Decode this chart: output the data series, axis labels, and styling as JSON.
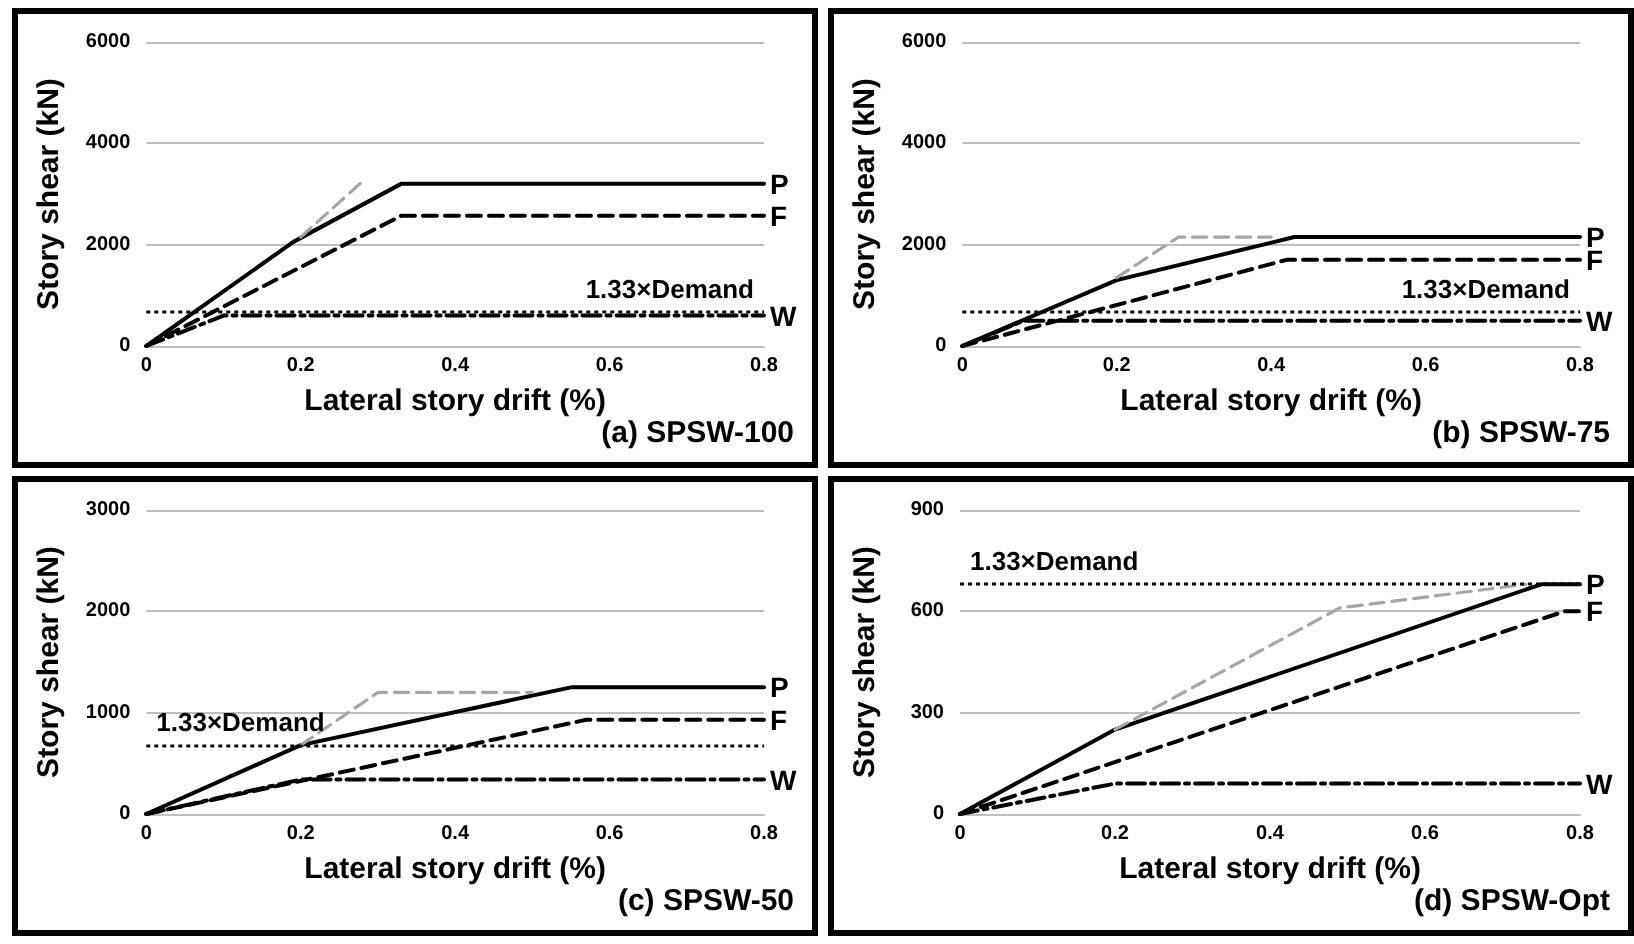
{
  "chart_data": [
    {
      "type": "line",
      "title": "(a) SPSW-100",
      "xlabel": "Lateral story drift (%)",
      "ylabel": "Story shear (kN)",
      "xlim": [
        0,
        0.8
      ],
      "xticks": [
        0,
        0.2,
        0.4,
        0.6,
        0.8
      ],
      "ylim": [
        0,
        6000
      ],
      "yticks": [
        0,
        2000,
        4000,
        6000
      ],
      "grid": "y",
      "legend": false,
      "marker": "none",
      "ref_lines": [
        {
          "axis": "y",
          "value": 680,
          "label": "1.33×Demand",
          "color": "#000000",
          "line_style": "dotted"
        }
      ],
      "series": [
        {
          "color": "#a6a6a6",
          "line_style": "dashed",
          "x": [
            0.2,
            0.28
          ],
          "values": [
            2150,
            3250
          ]
        },
        {
          "name": "P",
          "color": "#000000",
          "line_style": "solid",
          "x": [
            0,
            0.19,
            0.33,
            0.8
          ],
          "values": [
            0,
            2050,
            3200,
            3200
          ]
        },
        {
          "name": "F",
          "color": "#000000",
          "line_style": "dashed",
          "x": [
            0,
            0.33,
            0.8
          ],
          "values": [
            0,
            2570,
            2570
          ]
        },
        {
          "name": "W",
          "color": "#000000",
          "line_style": "dashdot",
          "x": [
            0,
            0.1,
            0.8
          ],
          "values": [
            0,
            600,
            600
          ]
        }
      ]
    },
    {
      "type": "line",
      "title": "(b) SPSW-75",
      "xlabel": "Lateral story drift (%)",
      "ylabel": "Story shear (kN)",
      "xlim": [
        0,
        0.8
      ],
      "xticks": [
        0,
        0.2,
        0.4,
        0.6,
        0.8
      ],
      "ylim": [
        0,
        6000
      ],
      "yticks": [
        0,
        2000,
        4000,
        6000
      ],
      "grid": "y",
      "legend": false,
      "marker": "none",
      "ref_lines": [
        {
          "axis": "y",
          "value": 680,
          "label": "1.33×Demand",
          "color": "#000000",
          "line_style": "dotted"
        }
      ],
      "series": [
        {
          "color": "#a6a6a6",
          "line_style": "dashed",
          "x": [
            0.2,
            0.28,
            0.4
          ],
          "values": [
            1350,
            2150,
            2150
          ]
        },
        {
          "name": "P",
          "color": "#000000",
          "line_style": "solid",
          "x": [
            0,
            0.2,
            0.43,
            0.8
          ],
          "values": [
            0,
            1300,
            2150,
            2150
          ]
        },
        {
          "name": "F",
          "color": "#000000",
          "line_style": "dashed",
          "x": [
            0,
            0.42,
            0.8
          ],
          "values": [
            0,
            1700,
            1700
          ]
        },
        {
          "name": "W",
          "color": "#000000",
          "line_style": "dashdot",
          "x": [
            0,
            0.08,
            0.8
          ],
          "values": [
            0,
            500,
            500
          ]
        }
      ]
    },
    {
      "type": "line",
      "title": "(c) SPSW-50",
      "xlabel": "Lateral story drift (%)",
      "ylabel": "Story shear (kN)",
      "xlim": [
        0,
        0.8
      ],
      "xticks": [
        0,
        0.2,
        0.4,
        0.6,
        0.8
      ],
      "ylim": [
        0,
        3000
      ],
      "yticks": [
        0,
        1000,
        2000,
        3000
      ],
      "grid": "y",
      "legend": false,
      "marker": "none",
      "ref_lines": [
        {
          "axis": "y",
          "value": 680,
          "label": "1.33×Demand",
          "color": "#000000",
          "line_style": "dotted"
        }
      ],
      "series": [
        {
          "color": "#a6a6a6",
          "line_style": "dashed",
          "x": [
            0.2,
            0.3,
            0.5
          ],
          "values": [
            680,
            1200,
            1200
          ]
        },
        {
          "name": "P",
          "color": "#000000",
          "line_style": "solid",
          "x": [
            0,
            0.2,
            0.55,
            0.8
          ],
          "values": [
            0,
            680,
            1250,
            1250
          ]
        },
        {
          "name": "F",
          "color": "#000000",
          "line_style": "dashed",
          "x": [
            0,
            0.57,
            0.8
          ],
          "values": [
            0,
            930,
            930
          ]
        },
        {
          "name": "W",
          "color": "#000000",
          "line_style": "dashdot",
          "x": [
            0,
            0.2,
            0.8
          ],
          "values": [
            0,
            340,
            340
          ]
        }
      ]
    },
    {
      "type": "line",
      "title": "(d) SPSW-Opt",
      "xlabel": "Lateral story drift (%)",
      "ylabel": "Story shear (kN)",
      "xlim": [
        0,
        0.8
      ],
      "xticks": [
        0,
        0.2,
        0.4,
        0.6,
        0.8
      ],
      "ylim": [
        0,
        900
      ],
      "yticks": [
        0,
        300,
        600,
        900
      ],
      "grid": "y",
      "legend": false,
      "marker": "none",
      "ref_lines": [
        {
          "axis": "y",
          "value": 680,
          "label": "1.33×Demand",
          "color": "#000000",
          "line_style": "dotted"
        }
      ],
      "series": [
        {
          "color": "#a6a6a6",
          "line_style": "dashed",
          "x": [
            0.2,
            0.49,
            0.73
          ],
          "values": [
            250,
            610,
            680
          ]
        },
        {
          "name": "P",
          "color": "#000000",
          "line_style": "solid",
          "x": [
            0,
            0.2,
            0.75,
            0.8
          ],
          "values": [
            0,
            250,
            680,
            680
          ]
        },
        {
          "name": "F",
          "color": "#000000",
          "line_style": "dashed",
          "x": [
            0,
            0.78,
            0.8
          ],
          "values": [
            0,
            600,
            600
          ]
        },
        {
          "name": "W",
          "color": "#000000",
          "line_style": "dashdot",
          "x": [
            0,
            0.2,
            0.8
          ],
          "values": [
            0,
            90,
            90
          ]
        }
      ]
    }
  ]
}
